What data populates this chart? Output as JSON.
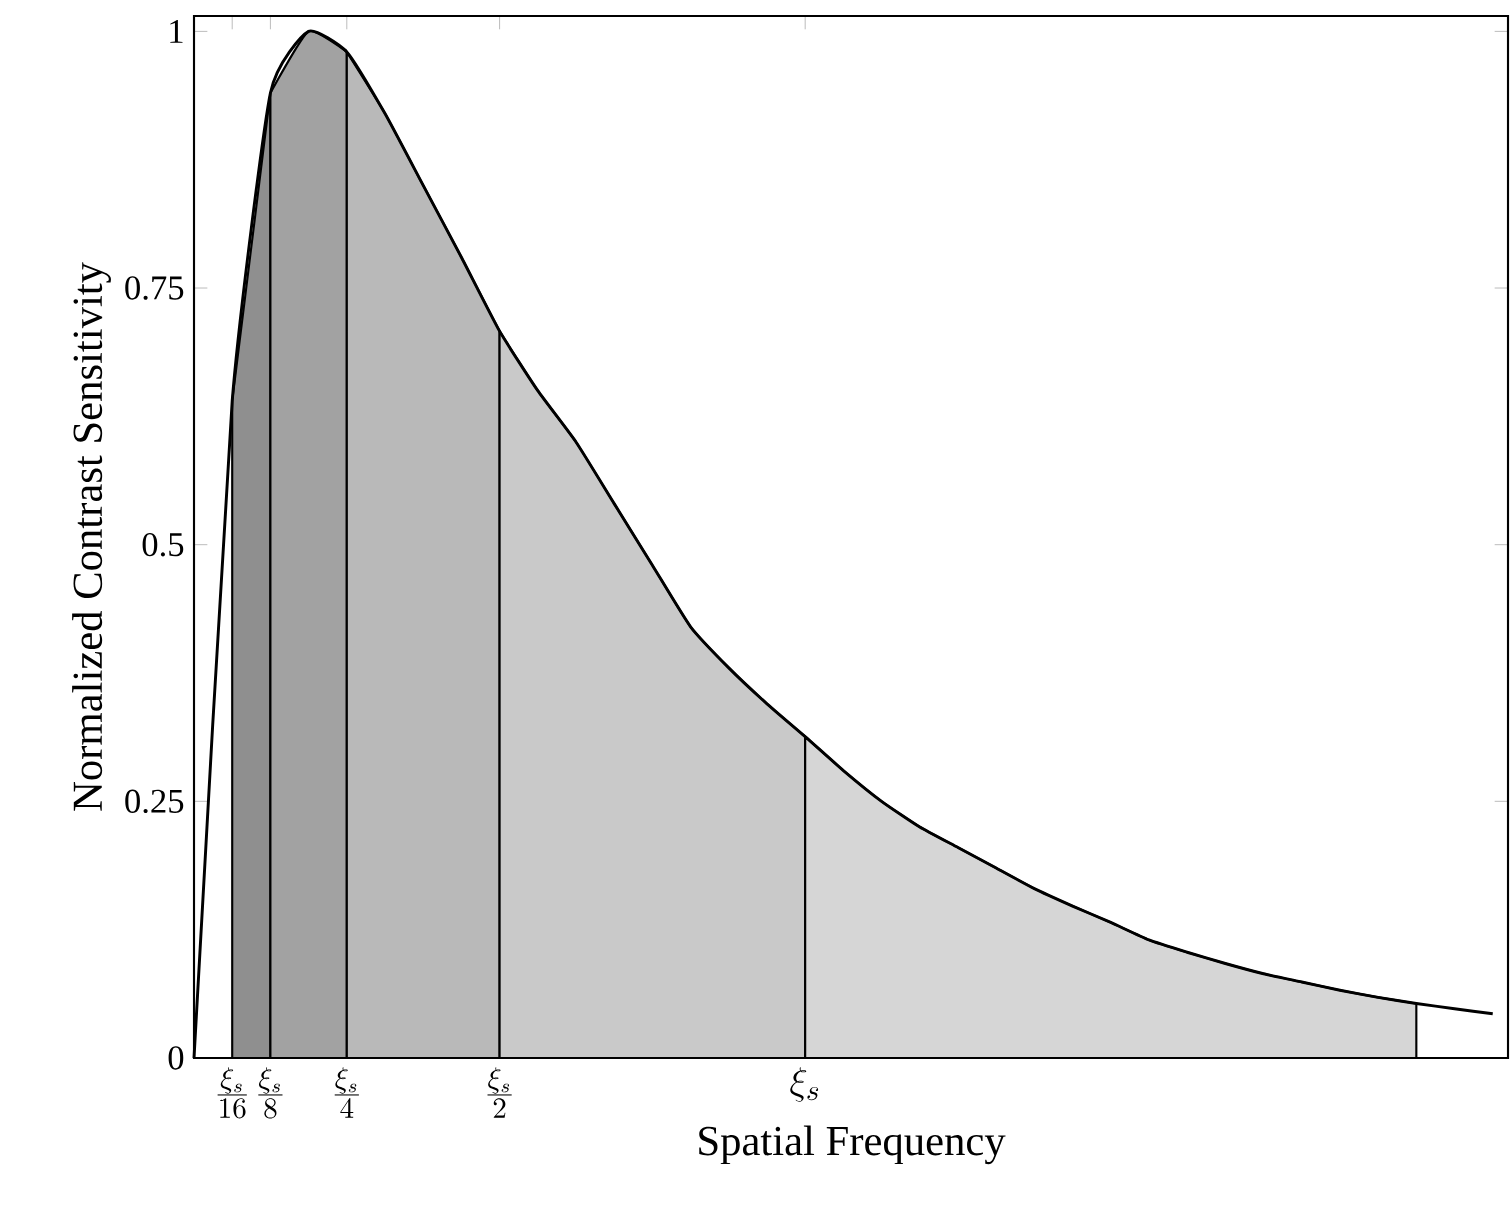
{
  "chart_data": {
    "type": "line",
    "xlabel": "Spatial Frequency",
    "ylabel": "Normalized Contrast Sensitivity",
    "ylim": [
      0,
      1.015
    ],
    "yticks": [
      0,
      0.25,
      0.5,
      0.75,
      1
    ],
    "categories": [
      null,
      "\\frac{\\xi_s}{16}",
      "\\frac{\\xi_s}{8}",
      null,
      "\\frac{\\xi_s}{4}",
      null,
      null,
      null,
      "\\frac{\\xi_s}{2}",
      null,
      null,
      null,
      null,
      null,
      null,
      null,
      "\\xi_s",
      null,
      null,
      null,
      null,
      null,
      null,
      null,
      null,
      null,
      null,
      null,
      null,
      null,
      null,
      null,
      null,
      null,
      null
    ],
    "series": [
      {
        "type": "area",
        "color": "#8f8f8f",
        "values": [
          null,
          0.64,
          0.94,
          null,
          null,
          null,
          null,
          null,
          null,
          null,
          null,
          null,
          null,
          null,
          null,
          null,
          null,
          null,
          null,
          null,
          null,
          null,
          null,
          null,
          null,
          null,
          null,
          null,
          null,
          null,
          null,
          null,
          null,
          null,
          null
        ]
      },
      {
        "type": "area",
        "color": "#a2a2a2",
        "values": [
          null,
          null,
          0.94,
          1.0,
          0.98,
          null,
          null,
          null,
          null,
          null,
          null,
          null,
          null,
          null,
          null,
          null,
          null,
          null,
          null,
          null,
          null,
          null,
          null,
          null,
          null,
          null,
          null,
          null,
          null,
          null,
          null,
          null,
          null,
          null,
          null
        ]
      },
      {
        "type": "area",
        "color": "#b9b9b9",
        "values": [
          null,
          null,
          null,
          null,
          0.98,
          0.92,
          0.85,
          0.78,
          0.708,
          null,
          null,
          null,
          null,
          null,
          null,
          null,
          null,
          null,
          null,
          null,
          null,
          null,
          null,
          null,
          null,
          null,
          null,
          null,
          null,
          null,
          null,
          null,
          null,
          null,
          null
        ]
      },
      {
        "type": "area",
        "color": "#c9c9c9",
        "values": [
          null,
          null,
          null,
          null,
          null,
          null,
          null,
          null,
          0.708,
          0.65,
          0.6,
          0.54,
          0.48,
          0.42,
          0.38,
          0.345,
          0.313,
          null,
          null,
          null,
          null,
          null,
          null,
          null,
          null,
          null,
          null,
          null,
          null,
          null,
          null,
          null,
          null,
          null,
          null
        ]
      },
      {
        "type": "area",
        "color": "#d6d6d6",
        "values": [
          null,
          null,
          null,
          null,
          null,
          null,
          null,
          null,
          null,
          null,
          null,
          null,
          null,
          null,
          null,
          null,
          0.313,
          0.28,
          0.25,
          0.225,
          0.205,
          0.185,
          0.165,
          0.148,
          0.132,
          0.115,
          0.103,
          0.092,
          0.082,
          0.074,
          0.066,
          0.059,
          0.053,
          null,
          null
        ]
      },
      {
        "color": "#000000",
        "values": [
          0,
          0.64,
          0.94,
          1.0,
          0.98,
          0.92,
          0.85,
          0.78,
          0.708,
          0.65,
          0.6,
          0.54,
          0.48,
          0.42,
          0.38,
          0.345,
          0.313,
          0.28,
          0.25,
          0.225,
          0.205,
          0.185,
          0.165,
          0.148,
          0.132,
          0.115,
          0.103,
          0.092,
          0.082,
          0.074,
          0.066,
          0.059,
          0.053,
          0.048,
          0.043
        ]
      }
    ]
  }
}
